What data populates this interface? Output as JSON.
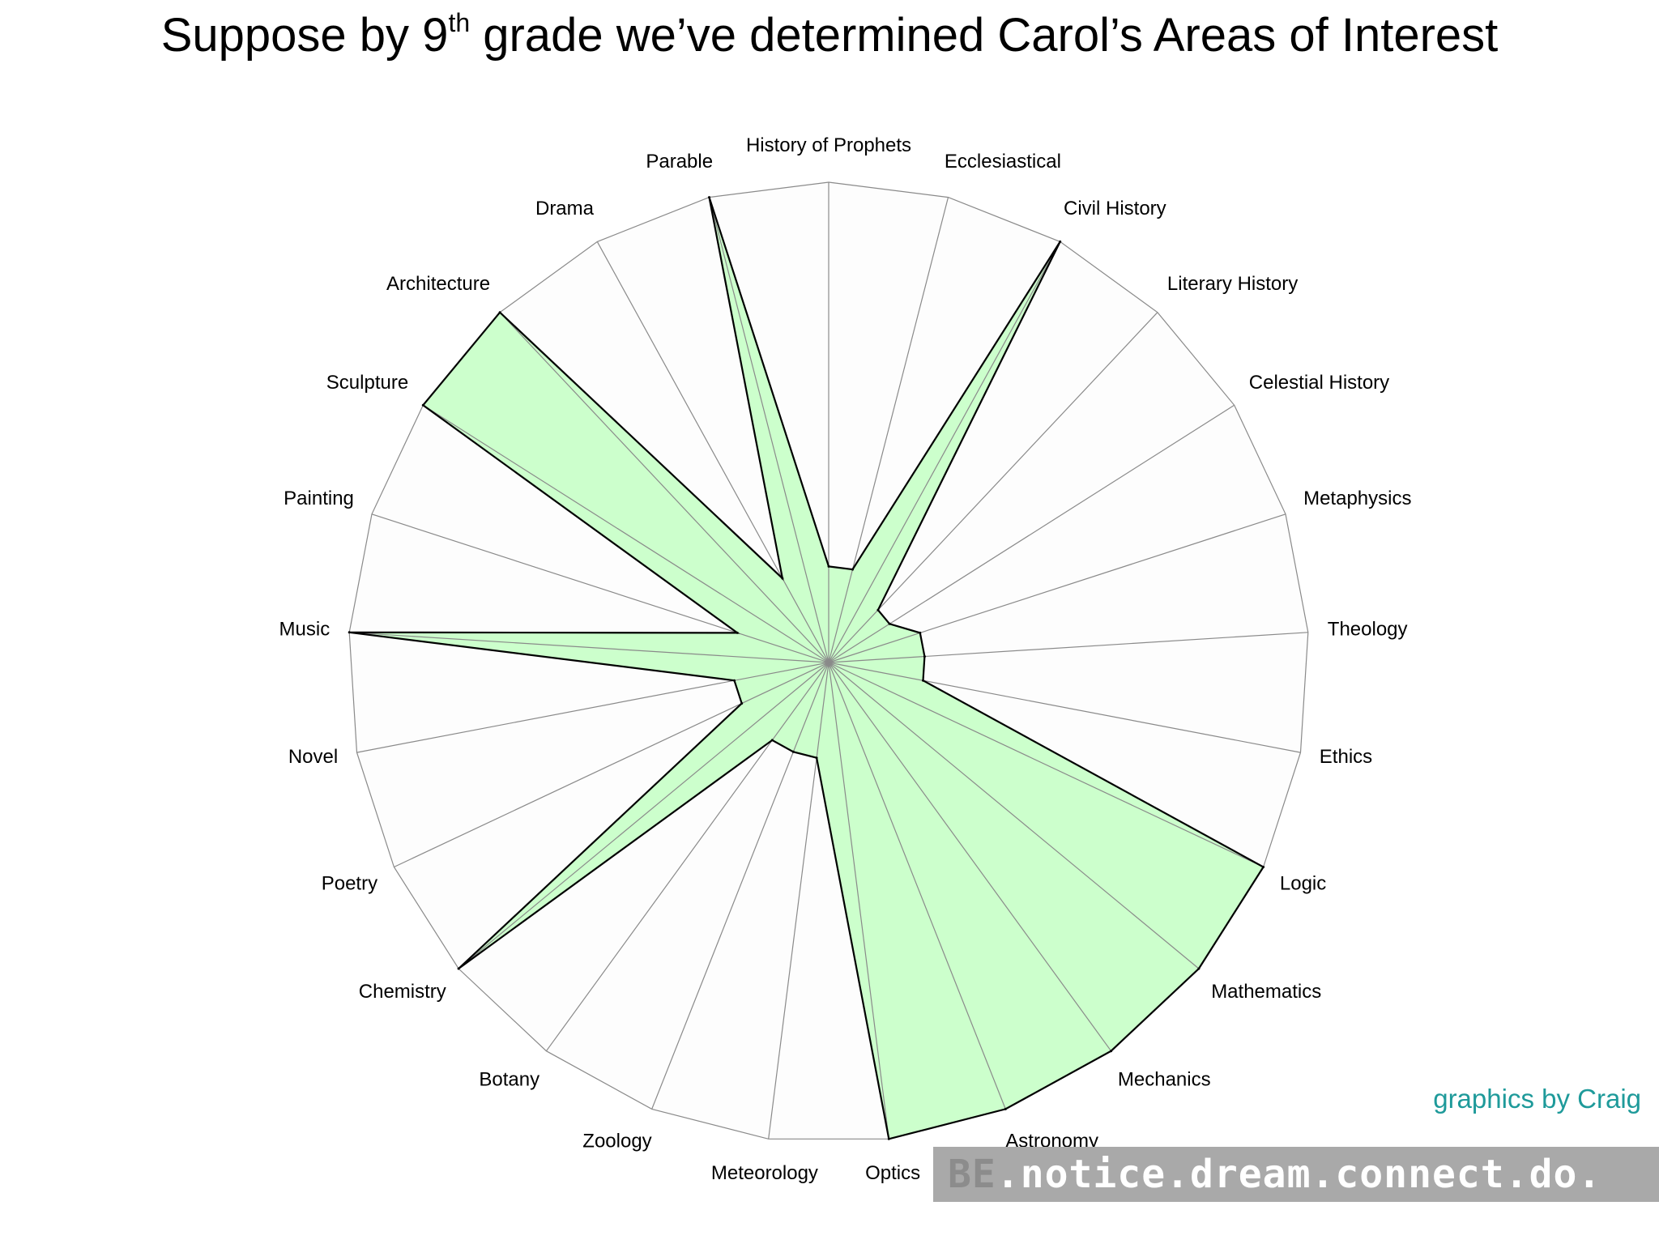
{
  "title": {
    "before": "Suppose by 9",
    "sup": "th",
    "after": " grade we’ve determined Carol’s Areas of Interest"
  },
  "credit": "graphics by Craig",
  "banner": {
    "prefix": "BE",
    "text": ".notice.dream.connect.do."
  },
  "colors": {
    "fill": "#ccffcc",
    "stroke": "#000000",
    "grid": "#8a8a8a",
    "credit": "#1e9a9a"
  },
  "chart_data": {
    "type": "radar",
    "title": "",
    "rlim": [
      0,
      10
    ],
    "grid": true,
    "categories": [
      "History of Prophets",
      "Ecclesiastical",
      "Civil History",
      "Literary History",
      "Celestial History",
      "Metaphysics",
      "Theology",
      "Ethics",
      "Logic",
      "Mathematics",
      "Mechanics",
      "Astronomy",
      "Optics",
      "Meteorology",
      "Zoology",
      "Botany",
      "Chemistry",
      "Poetry",
      "Novel",
      "Music",
      "Painting",
      "Sculpture",
      "Architecture",
      "Drama",
      "Parable"
    ],
    "values": [
      2,
      2,
      10,
      1.5,
      1.5,
      2,
      2,
      2,
      10,
      10,
      10,
      10,
      10,
      2,
      2,
      2,
      10,
      2,
      2,
      10,
      2,
      10,
      10,
      2,
      10
    ]
  }
}
